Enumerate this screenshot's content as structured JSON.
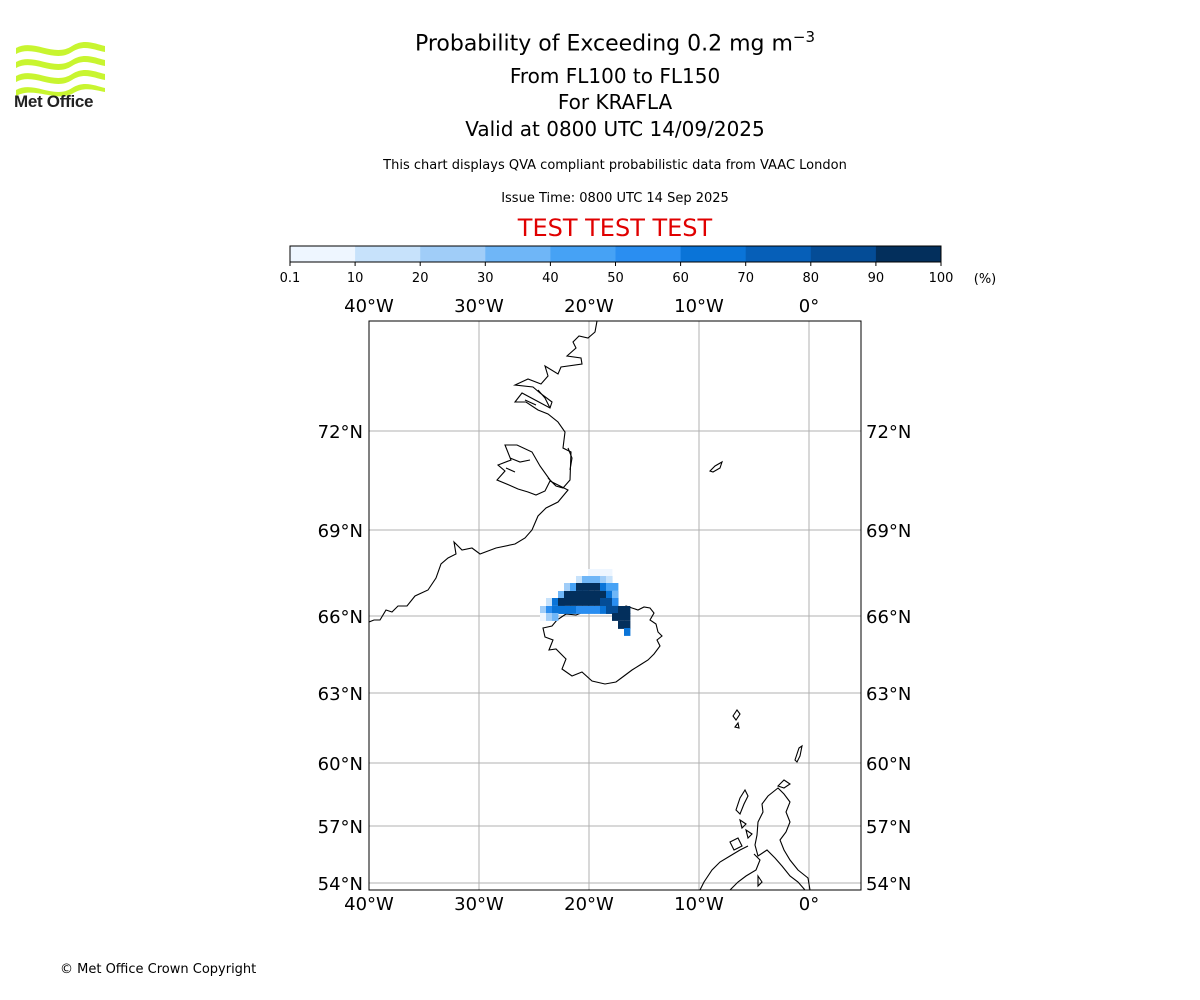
{
  "logo": {
    "text": "Met Office",
    "brand_color": "#c8f530",
    "icon": "met-office-wave-logo"
  },
  "header": {
    "title_main": "Probability of Exceeding 0.2 mg m",
    "title_exponent": "−3",
    "levels": "From FL100 to FL150",
    "location": "For KRAFLA",
    "valid": "Valid at 0800 UTC 14/09/2025",
    "description": "This chart displays QVA compliant probabilistic data from VAAC London",
    "issue_time": "Issue Time: 0800 UTC 14 Sep 2025",
    "test_banner": "TEST TEST TEST",
    "test_color": "#e00000"
  },
  "colorbar": {
    "ticks": [
      "0.1",
      "10",
      "20",
      "30",
      "40",
      "50",
      "60",
      "70",
      "80",
      "90",
      "100"
    ],
    "unit": "(%)",
    "colors": [
      "#eef6ff",
      "#c7e2fb",
      "#a0cdf8",
      "#6fb6f7",
      "#46a2f5",
      "#2a8ef1",
      "#0a74d8",
      "#065fb8",
      "#044c96",
      "#032f5c"
    ]
  },
  "map": {
    "lon_labels": [
      "40°W",
      "30°W",
      "20°W",
      "10°W",
      "0°"
    ],
    "lat_labels": [
      "72°N",
      "69°N",
      "66°N",
      "63°N",
      "60°N",
      "57°N",
      "54°N"
    ],
    "lon_values": [
      -40,
      -30,
      -20,
      -10,
      0
    ],
    "lat_values": [
      72,
      69,
      66,
      63,
      60,
      57,
      54
    ],
    "extent": {
      "lon": [
        -40,
        5
      ],
      "lat": [
        54,
        75
      ]
    },
    "plume_probability_bands": [
      {
        "band": "0.1-10",
        "color": "#eef6ff"
      },
      {
        "band": "90-100",
        "color": "#032f5c"
      }
    ]
  },
  "footer": {
    "copyright": "© Met Office Crown Copyright"
  }
}
